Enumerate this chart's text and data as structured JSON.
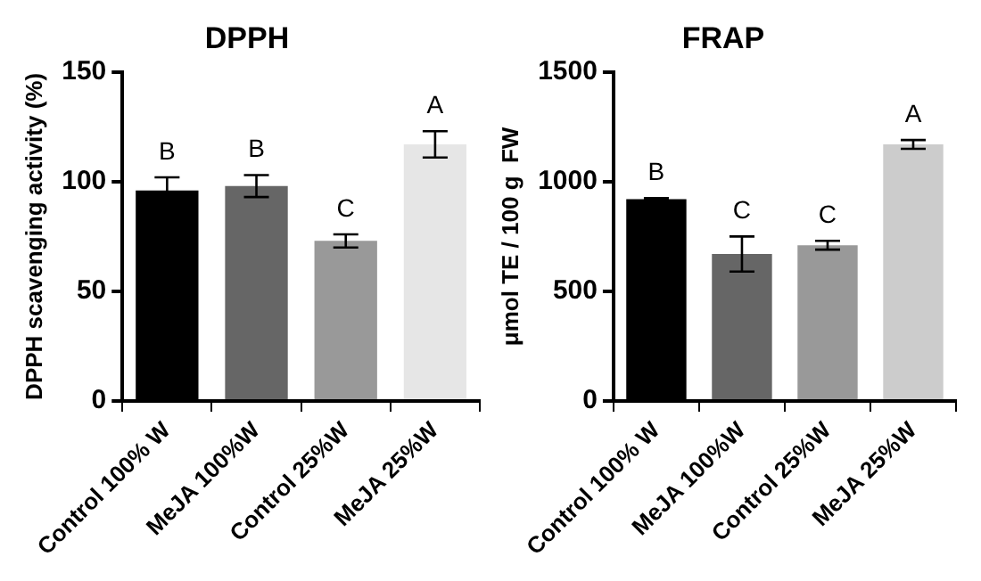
{
  "chart_data": [
    {
      "type": "bar",
      "title": "DPPH",
      "ylabel": "DPPH scavenging activity (%)",
      "categories": [
        "Control 100% W",
        "MeJA 100%W",
        "Control 25%W",
        "MeJA 25%W"
      ],
      "values": [
        96,
        98,
        73,
        117
      ],
      "colors": [
        "#000000",
        "#666666",
        "#999999",
        "#e6e6e6"
      ],
      "errors": [
        6,
        5,
        3,
        6
      ],
      "ylim": [
        0,
        150
      ],
      "yticks": [
        0,
        50,
        100,
        150
      ],
      "grid": false,
      "annotations": [
        "B",
        "B",
        "C",
        "A"
      ]
    },
    {
      "type": "bar",
      "title": "FRAP",
      "ylabel": "μmol TE / 100 g  FW",
      "categories": [
        "Control 100% W",
        "MeJA 100%W",
        "Control 25%W",
        "MeJA 25%W"
      ],
      "values": [
        920,
        670,
        710,
        1170
      ],
      "colors": [
        "#000000",
        "#666666",
        "#999999",
        "#cccccc"
      ],
      "errors": [
        5,
        80,
        20,
        20
      ],
      "ylim": [
        0,
        1500
      ],
      "yticks": [
        0,
        500,
        1000,
        1500
      ],
      "grid": false,
      "annotations": [
        "B",
        "C",
        "C",
        "A"
      ]
    }
  ]
}
